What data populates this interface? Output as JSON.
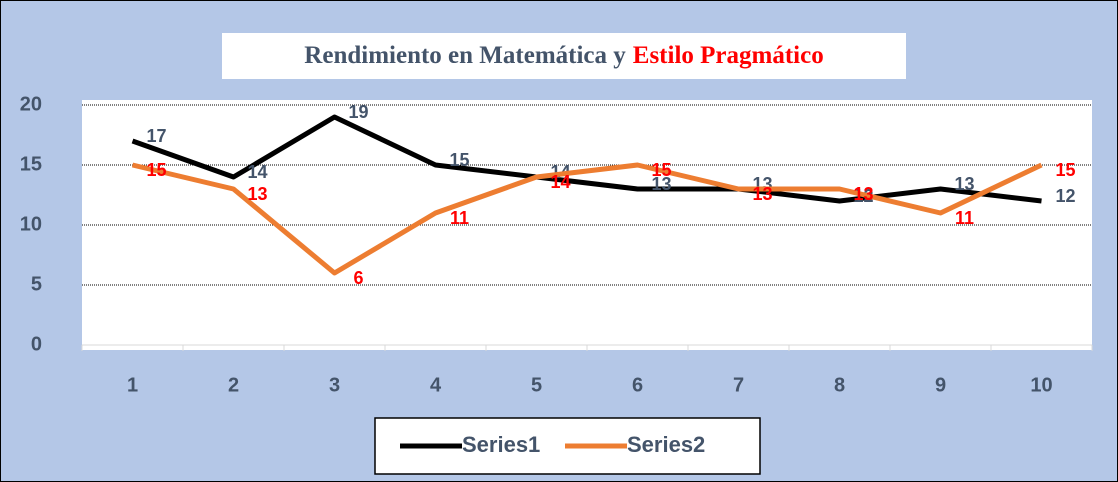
{
  "chart_data": {
    "type": "line",
    "title": [
      "Rendimiento en Matemática y",
      "Estilo Pragmático"
    ],
    "title_colors": [
      "#44546a",
      "#ff0000"
    ],
    "categories": [
      1,
      2,
      3,
      4,
      5,
      6,
      7,
      8,
      9,
      10
    ],
    "series": [
      {
        "name": "Series1",
        "color": "#000000",
        "label_color": "#44546a",
        "values": [
          17,
          14,
          19,
          15,
          14,
          13,
          13,
          12,
          13,
          12
        ]
      },
      {
        "name": "Series2",
        "color": "#ed7d31",
        "label_color": "#ff0000",
        "values": [
          15,
          13,
          6,
          11,
          14,
          15,
          13,
          13,
          11,
          15
        ]
      }
    ],
    "ylim": [
      0,
      20
    ],
    "yticks": [
      0,
      5,
      10,
      15,
      20
    ],
    "grid": true,
    "legend": "bottom"
  }
}
